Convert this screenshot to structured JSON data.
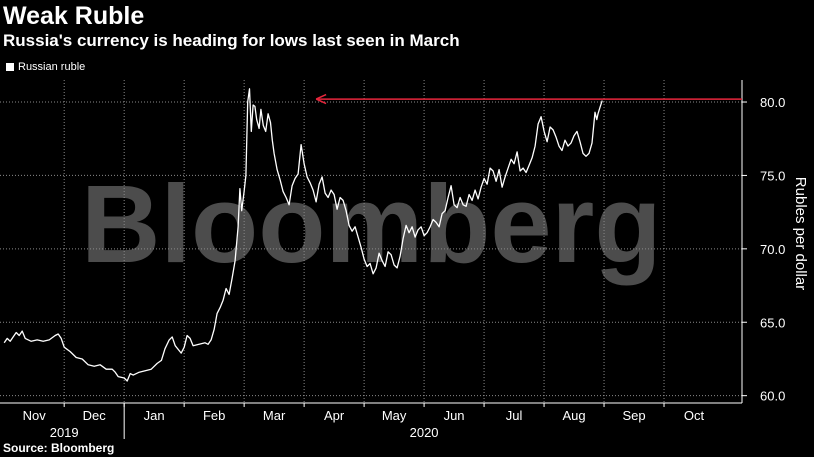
{
  "header": {
    "title": "Weak Ruble",
    "subtitle": "Russia's currency is heading for lows last seen in March"
  },
  "legend": {
    "label": "Russian ruble"
  },
  "source": "Source: Bloomberg",
  "watermark": "Bloomberg",
  "colors": {
    "background": "#000000",
    "line": "#ffffff",
    "arrow": "#e8263c",
    "grid": "#8a8a8a"
  },
  "chart_data": {
    "type": "line",
    "series": [
      {
        "name": "Russian ruble",
        "x_units": "months since 2019-11-01",
        "points": [
          [
            0.0,
            63.6
          ],
          [
            0.05,
            63.9
          ],
          [
            0.1,
            63.7
          ],
          [
            0.15,
            64.0
          ],
          [
            0.2,
            64.3
          ],
          [
            0.25,
            64.1
          ],
          [
            0.3,
            64.4
          ],
          [
            0.35,
            63.9
          ],
          [
            0.45,
            63.7
          ],
          [
            0.55,
            63.8
          ],
          [
            0.65,
            63.7
          ],
          [
            0.75,
            63.8
          ],
          [
            0.85,
            64.1
          ],
          [
            0.9,
            64.2
          ],
          [
            0.95,
            63.9
          ],
          [
            1.0,
            63.3
          ],
          [
            1.1,
            63.0
          ],
          [
            1.2,
            62.6
          ],
          [
            1.3,
            62.5
          ],
          [
            1.4,
            62.1
          ],
          [
            1.5,
            62.0
          ],
          [
            1.6,
            62.1
          ],
          [
            1.7,
            61.8
          ],
          [
            1.8,
            61.8
          ],
          [
            1.85,
            61.6
          ],
          [
            1.9,
            61.3
          ],
          [
            2.0,
            61.2
          ],
          [
            2.05,
            61.0
          ],
          [
            2.1,
            61.5
          ],
          [
            2.15,
            61.4
          ],
          [
            2.25,
            61.6
          ],
          [
            2.35,
            61.7
          ],
          [
            2.45,
            61.8
          ],
          [
            2.55,
            62.2
          ],
          [
            2.62,
            62.4
          ],
          [
            2.68,
            63.2
          ],
          [
            2.75,
            63.8
          ],
          [
            2.8,
            64.0
          ],
          [
            2.85,
            63.4
          ],
          [
            2.95,
            62.9
          ],
          [
            3.0,
            63.3
          ],
          [
            3.05,
            64.1
          ],
          [
            3.1,
            63.9
          ],
          [
            3.15,
            63.4
          ],
          [
            3.25,
            63.5
          ],
          [
            3.35,
            63.6
          ],
          [
            3.4,
            63.5
          ],
          [
            3.45,
            63.8
          ],
          [
            3.5,
            64.5
          ],
          [
            3.55,
            65.6
          ],
          [
            3.6,
            66.0
          ],
          [
            3.65,
            66.5
          ],
          [
            3.7,
            67.3
          ],
          [
            3.75,
            66.9
          ],
          [
            3.8,
            68.0
          ],
          [
            3.85,
            69.2
          ],
          [
            3.9,
            71.5
          ],
          [
            3.93,
            74.1
          ],
          [
            3.96,
            72.6
          ],
          [
            4.0,
            73.9
          ],
          [
            4.03,
            75.0
          ],
          [
            4.06,
            80.0
          ],
          [
            4.09,
            80.9
          ],
          [
            4.12,
            78.0
          ],
          [
            4.15,
            79.8
          ],
          [
            4.18,
            79.7
          ],
          [
            4.21,
            78.8
          ],
          [
            4.25,
            78.2
          ],
          [
            4.28,
            79.5
          ],
          [
            4.32,
            78.4
          ],
          [
            4.36,
            78.0
          ],
          [
            4.4,
            79.2
          ],
          [
            4.44,
            78.6
          ],
          [
            4.47,
            77.4
          ],
          [
            4.5,
            76.5
          ],
          [
            4.55,
            75.4
          ],
          [
            4.6,
            74.7
          ],
          [
            4.65,
            73.9
          ],
          [
            4.7,
            73.5
          ],
          [
            4.75,
            73.0
          ],
          [
            4.8,
            74.3
          ],
          [
            4.85,
            74.8
          ],
          [
            4.9,
            75.1
          ],
          [
            4.95,
            77.1
          ],
          [
            5.0,
            75.8
          ],
          [
            5.05,
            74.9
          ],
          [
            5.1,
            74.5
          ],
          [
            5.15,
            74.0
          ],
          [
            5.2,
            73.2
          ],
          [
            5.25,
            74.4
          ],
          [
            5.3,
            74.9
          ],
          [
            5.35,
            73.8
          ],
          [
            5.4,
            73.5
          ],
          [
            5.45,
            74.0
          ],
          [
            5.5,
            73.7
          ],
          [
            5.55,
            72.7
          ],
          [
            5.6,
            73.5
          ],
          [
            5.65,
            73.3
          ],
          [
            5.7,
            72.6
          ],
          [
            5.75,
            71.6
          ],
          [
            5.8,
            71.2
          ],
          [
            5.85,
            71.5
          ],
          [
            5.9,
            70.8
          ],
          [
            5.95,
            70.1
          ],
          [
            6.0,
            69.3
          ],
          [
            6.05,
            68.8
          ],
          [
            6.1,
            69.0
          ],
          [
            6.15,
            68.3
          ],
          [
            6.2,
            68.7
          ],
          [
            6.25,
            69.7
          ],
          [
            6.3,
            69.2
          ],
          [
            6.35,
            68.8
          ],
          [
            6.4,
            69.8
          ],
          [
            6.45,
            69.6
          ],
          [
            6.5,
            68.9
          ],
          [
            6.55,
            68.7
          ],
          [
            6.6,
            69.5
          ],
          [
            6.65,
            70.7
          ],
          [
            6.7,
            71.6
          ],
          [
            6.75,
            71.1
          ],
          [
            6.8,
            71.5
          ],
          [
            6.85,
            70.8
          ],
          [
            6.9,
            71.3
          ],
          [
            6.95,
            71.5
          ],
          [
            7.0,
            70.9
          ],
          [
            7.05,
            71.1
          ],
          [
            7.1,
            71.5
          ],
          [
            7.15,
            72.0
          ],
          [
            7.2,
            71.8
          ],
          [
            7.25,
            71.5
          ],
          [
            7.3,
            72.4
          ],
          [
            7.35,
            72.6
          ],
          [
            7.4,
            73.5
          ],
          [
            7.45,
            74.3
          ],
          [
            7.5,
            73.0
          ],
          [
            7.55,
            72.8
          ],
          [
            7.6,
            73.5
          ],
          [
            7.65,
            73.0
          ],
          [
            7.7,
            72.9
          ],
          [
            7.75,
            73.7
          ],
          [
            7.8,
            73.3
          ],
          [
            7.85,
            74.0
          ],
          [
            7.9,
            73.4
          ],
          [
            7.95,
            74.2
          ],
          [
            8.0,
            74.8
          ],
          [
            8.05,
            74.4
          ],
          [
            8.1,
            75.5
          ],
          [
            8.15,
            75.3
          ],
          [
            8.2,
            74.6
          ],
          [
            8.25,
            75.4
          ],
          [
            8.3,
            74.2
          ],
          [
            8.35,
            74.9
          ],
          [
            8.4,
            75.5
          ],
          [
            8.45,
            76.1
          ],
          [
            8.5,
            75.8
          ],
          [
            8.55,
            76.6
          ],
          [
            8.6,
            75.3
          ],
          [
            8.65,
            75.5
          ],
          [
            8.7,
            75.2
          ],
          [
            8.75,
            75.7
          ],
          [
            8.8,
            76.2
          ],
          [
            8.85,
            77.0
          ],
          [
            8.9,
            78.5
          ],
          [
            8.95,
            79.0
          ],
          [
            9.0,
            78.0
          ],
          [
            9.05,
            77.3
          ],
          [
            9.1,
            78.3
          ],
          [
            9.15,
            78.1
          ],
          [
            9.2,
            77.6
          ],
          [
            9.25,
            77.0
          ],
          [
            9.3,
            76.7
          ],
          [
            9.35,
            77.4
          ],
          [
            9.4,
            77.0
          ],
          [
            9.45,
            77.2
          ],
          [
            9.5,
            77.7
          ],
          [
            9.55,
            78.0
          ],
          [
            9.6,
            77.3
          ],
          [
            9.65,
            76.5
          ],
          [
            9.7,
            76.3
          ],
          [
            9.75,
            76.5
          ],
          [
            9.8,
            77.2
          ],
          [
            9.85,
            79.3
          ],
          [
            9.88,
            78.8
          ],
          [
            9.9,
            79.2
          ],
          [
            9.93,
            79.6
          ],
          [
            9.97,
            80.1
          ]
        ]
      }
    ],
    "x_tick_labels": [
      {
        "label": "Nov",
        "x": 0.5
      },
      {
        "label": "Dec",
        "x": 1.5
      },
      {
        "label": "Jan",
        "x": 2.5
      },
      {
        "label": "Feb",
        "x": 3.5
      },
      {
        "label": "Mar",
        "x": 4.5
      },
      {
        "label": "Apr",
        "x": 5.5
      },
      {
        "label": "May",
        "x": 6.5
      },
      {
        "label": "Jun",
        "x": 7.5
      },
      {
        "label": "Jul",
        "x": 8.5
      },
      {
        "label": "Aug",
        "x": 9.5
      },
      {
        "label": "Sep",
        "x": 10.5
      },
      {
        "label": "Oct",
        "x": 11.5
      }
    ],
    "year_labels": [
      {
        "label": "2019",
        "x": 1.0
      },
      {
        "label": "2020",
        "x": 7.0
      }
    ],
    "x_gridlines": [
      1,
      2,
      3,
      4,
      5,
      6,
      7,
      8,
      9,
      10,
      11
    ],
    "y_ticks": [
      60.0,
      65.0,
      70.0,
      75.0,
      80.0
    ],
    "y_tick_labels": [
      "60.0",
      "65.0",
      "70.0",
      "75.0",
      "80.0"
    ],
    "ylabel": "Rubles per dollar",
    "xlim": [
      0,
      12.5
    ],
    "ylim": [
      59.5,
      81.5
    ],
    "grid": true,
    "legend_position": "top-left",
    "annotation": {
      "type": "arrow",
      "y": 80.2,
      "x_from": 12.3,
      "x_to": 5.2
    }
  }
}
